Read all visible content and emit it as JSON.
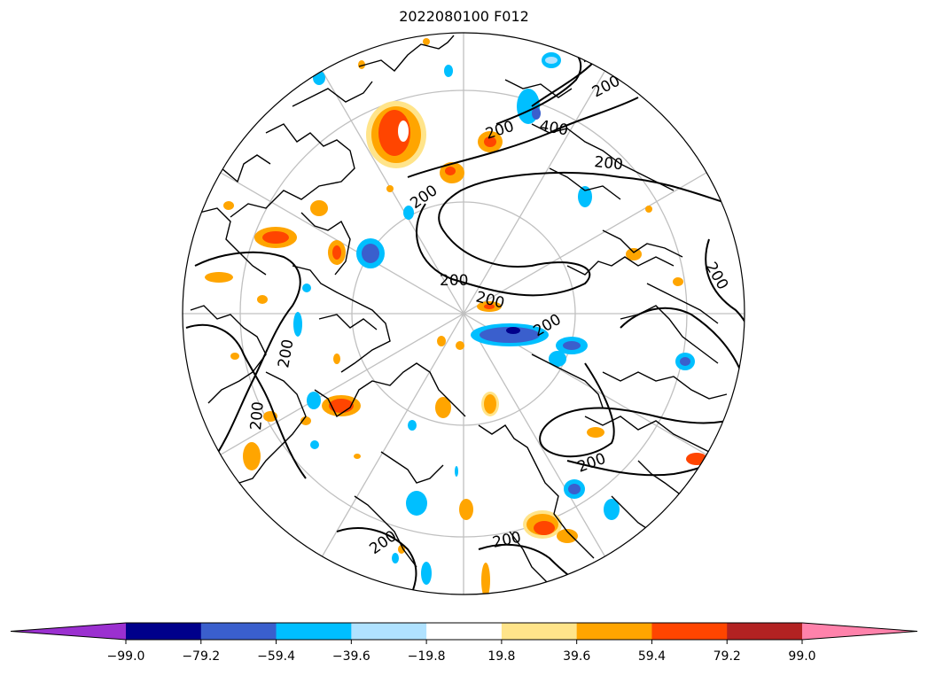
{
  "title": "2022080100 F012",
  "contour_labels": [
    "200",
    "200",
    "200",
    "200",
    "200",
    "200",
    "400",
    "200",
    "200",
    "200",
    "200",
    "200",
    "200",
    "200",
    "200",
    "200"
  ],
  "colorbar": {
    "ticks": [
      "−99.0",
      "−79.2",
      "−59.4",
      "−39.6",
      "−19.8",
      "19.8",
      "39.6",
      "59.4",
      "79.2",
      "99.0"
    ],
    "colors": [
      "#9b30d0",
      "#00008b",
      "#3a5fcd",
      "#00bfff",
      "#b0e2ff",
      "#ffffff",
      "#ffe48a",
      "#ffa500",
      "#ff4500",
      "#b22222",
      "#ff82ab"
    ]
  },
  "palette": {
    "land_outline": "#000000",
    "grid": "#c0c0c0",
    "contour": "#000000"
  }
}
